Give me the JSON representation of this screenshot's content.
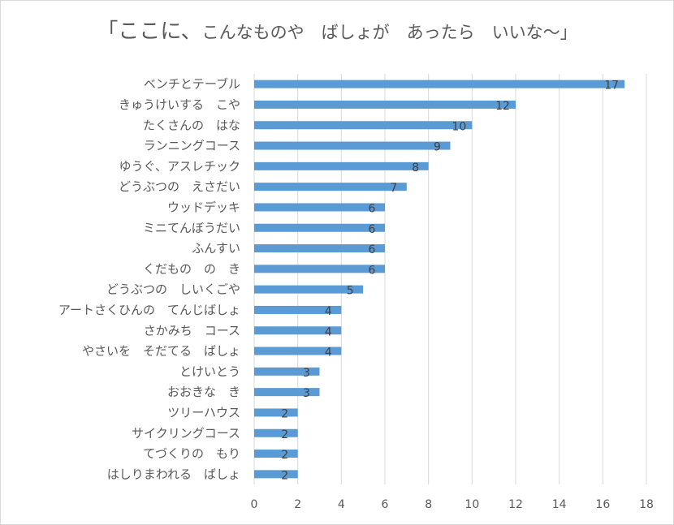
{
  "chart_data": {
    "type": "bar",
    "orientation": "horizontal",
    "title": "「ここに、こんなものや　ばしょが　あったら　いいな～」",
    "title_parts": [
      "「ここに、",
      "こんなものや　ばしょが　あったら　いいな～」"
    ],
    "categories": [
      "ベンチとテーブル",
      "きゅうけいする　こや",
      "たくさんの　はな",
      "ランニングコース",
      "ゆうぐ、アスレチック",
      "どうぶつの　えさだい",
      "ウッドデッキ",
      "ミニてんぼうだい",
      "ふんすい",
      "くだもの　の　き",
      "どうぶつの　しいくごや",
      "アートさくひんの　てんじばしょ",
      "さかみち　コース",
      "やさいを　そだてる　ばしょ",
      "とけいとう",
      "おおきな　き",
      "ツリーハウス",
      "サイクリングコース",
      "てづくりの　もり",
      "はしりまわれる　ばしょ"
    ],
    "values": [
      17,
      12,
      10,
      9,
      8,
      7,
      6,
      6,
      6,
      6,
      5,
      4,
      4,
      4,
      3,
      3,
      2,
      2,
      2,
      2
    ],
    "xlim": [
      0,
      18
    ],
    "xticks": [
      0,
      2,
      4,
      6,
      8,
      10,
      12,
      14,
      16,
      18
    ],
    "xlabel": "",
    "ylabel": "",
    "grid": true,
    "data_labels": true,
    "bar_color": "#5b9bd5",
    "grid_color": "#d9d9d9",
    "text_color": "#595959"
  }
}
